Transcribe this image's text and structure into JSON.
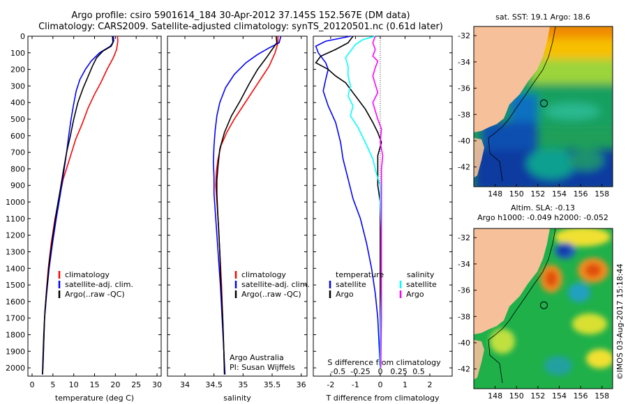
{
  "header": {
    "title_line1": "Argo profile: csiro 5901614_184 30-Apr-2012 37.145S 152.567E (DM data)",
    "title_line2": "Climatology: CARS2009. Satellite-adjusted climatology: synTS_20120501.nc (0.61d later)"
  },
  "colors": {
    "climatology": "#ff0000",
    "satellite": "#0000ff",
    "argo": "#000000",
    "sal_satellite": "#00ffff",
    "sal_argo": "#ff00ff",
    "land": "#f5c09a"
  },
  "chart_data": [
    {
      "type": "line",
      "id": "temperature",
      "xlabel": "temperature (deg C)",
      "xlim": [
        -1,
        31
      ],
      "ylim": [
        2050,
        0
      ],
      "xticks": [
        0,
        5,
        10,
        15,
        20,
        25,
        30
      ],
      "yticks": [
        0,
        100,
        200,
        300,
        400,
        500,
        600,
        700,
        800,
        900,
        1000,
        1100,
        1200,
        1300,
        1400,
        1500,
        1600,
        1700,
        1800,
        1900,
        2000
      ],
      "legend": [
        "climatology",
        "satellite-adj. clim.",
        "Argo(..raw -QC)"
      ],
      "series": [
        {
          "name": "climatology",
          "color": "#ff0000",
          "points": [
            [
              20.5,
              0
            ],
            [
              20.6,
              30
            ],
            [
              20.3,
              80
            ],
            [
              19.5,
              130
            ],
            [
              18.0,
              200
            ],
            [
              16.5,
              280
            ],
            [
              15.0,
              350
            ],
            [
              13.5,
              430
            ],
            [
              12.0,
              530
            ],
            [
              10.5,
              620
            ],
            [
              9.0,
              740
            ],
            [
              7.5,
              860
            ],
            [
              6.5,
              980
            ],
            [
              5.5,
              1100
            ],
            [
              4.6,
              1250
            ],
            [
              3.9,
              1400
            ],
            [
              3.4,
              1550
            ],
            [
              3.0,
              1700
            ],
            [
              2.8,
              1850
            ],
            [
              2.6,
              2000
            ],
            [
              2.5,
              2040
            ]
          ]
        },
        {
          "name": "satellite-adj. clim.",
          "color": "#0000ff",
          "points": [
            [
              19.5,
              0
            ],
            [
              19.6,
              30
            ],
            [
              18.8,
              60
            ],
            [
              16.2,
              100
            ],
            [
              14.2,
              150
            ],
            [
              12.8,
              200
            ],
            [
              11.5,
              260
            ],
            [
              10.6,
              330
            ],
            [
              9.9,
              420
            ],
            [
              9.3,
              510
            ],
            [
              8.8,
              600
            ],
            [
              8.3,
              700
            ],
            [
              7.6,
              820
            ],
            [
              6.8,
              950
            ],
            [
              5.8,
              1100
            ],
            [
              4.9,
              1250
            ],
            [
              4.1,
              1400
            ],
            [
              3.5,
              1550
            ],
            [
              3.0,
              1700
            ],
            [
              2.8,
              1850
            ],
            [
              2.6,
              2000
            ],
            [
              2.5,
              2040
            ]
          ]
        },
        {
          "name": "Argo(..raw -QC)",
          "color": "#000000",
          "points": [
            [
              19.3,
              0
            ],
            [
              19.4,
              40
            ],
            [
              19.0,
              60
            ],
            [
              17.0,
              90
            ],
            [
              15.5,
              130
            ],
            [
              14.5,
              180
            ],
            [
              13.5,
              240
            ],
            [
              12.3,
              310
            ],
            [
              11.0,
              400
            ],
            [
              10.0,
              500
            ],
            [
              9.2,
              600
            ],
            [
              8.3,
              700
            ],
            [
              7.6,
              800
            ],
            [
              6.8,
              920
            ],
            [
              5.9,
              1050
            ],
            [
              5.0,
              1200
            ],
            [
              4.2,
              1350
            ],
            [
              3.6,
              1500
            ],
            [
              3.1,
              1650
            ],
            [
              2.8,
              1800
            ],
            [
              2.6,
              1950
            ],
            [
              2.5,
              2040
            ]
          ]
        }
      ]
    },
    {
      "type": "line",
      "id": "salinity",
      "xlabel": "salinity",
      "xlim": [
        33.7,
        36.1
      ],
      "ylim": [
        2050,
        0
      ],
      "xticks": [
        34,
        34.5,
        35,
        35.5,
        36
      ],
      "legend": [
        "climatology",
        "satellite-adj. clim.",
        "Argo(..raw -QC)"
      ],
      "annotation": [
        "Argo Australia",
        "PI: Susan Wijffels"
      ],
      "series": [
        {
          "name": "climatology",
          "color": "#ff0000",
          "points": [
            [
              35.6,
              0
            ],
            [
              35.6,
              40
            ],
            [
              35.55,
              100
            ],
            [
              35.45,
              180
            ],
            [
              35.3,
              260
            ],
            [
              35.15,
              340
            ],
            [
              35.0,
              420
            ],
            [
              34.85,
              500
            ],
            [
              34.72,
              580
            ],
            [
              34.62,
              660
            ],
            [
              34.57,
              740
            ],
            [
              34.54,
              820
            ],
            [
              34.53,
              900
            ],
            [
              34.55,
              1000
            ],
            [
              34.58,
              1150
            ],
            [
              34.6,
              1300
            ],
            [
              34.63,
              1500
            ],
            [
              34.65,
              1700
            ],
            [
              34.67,
              1900
            ],
            [
              34.68,
              2040
            ]
          ]
        },
        {
          "name": "satellite-adj. clim.",
          "color": "#0000ff",
          "points": [
            [
              35.65,
              0
            ],
            [
              35.62,
              40
            ],
            [
              35.45,
              70
            ],
            [
              35.25,
              110
            ],
            [
              35.05,
              160
            ],
            [
              34.85,
              230
            ],
            [
              34.7,
              310
            ],
            [
              34.6,
              400
            ],
            [
              34.55,
              480
            ],
            [
              34.52,
              570
            ],
            [
              34.5,
              660
            ],
            [
              34.49,
              760
            ],
            [
              34.5,
              850
            ],
            [
              34.5,
              950
            ],
            [
              34.53,
              1100
            ],
            [
              34.57,
              1300
            ],
            [
              34.61,
              1500
            ],
            [
              34.64,
              1700
            ],
            [
              34.67,
              1900
            ],
            [
              34.69,
              2040
            ]
          ]
        },
        {
          "name": "Argo(..raw -QC)",
          "color": "#000000",
          "points": [
            [
              35.57,
              0
            ],
            [
              35.58,
              40
            ],
            [
              35.5,
              80
            ],
            [
              35.4,
              130
            ],
            [
              35.25,
              200
            ],
            [
              35.1,
              290
            ],
            [
              34.95,
              390
            ],
            [
              34.8,
              480
            ],
            [
              34.68,
              580
            ],
            [
              34.6,
              680
            ],
            [
              34.57,
              780
            ],
            [
              34.55,
              870
            ],
            [
              34.55,
              950
            ],
            [
              34.57,
              1100
            ],
            [
              34.6,
              1300
            ],
            [
              34.62,
              1500
            ],
            [
              34.65,
              1700
            ],
            [
              34.67,
              1900
            ],
            [
              34.68,
              2040
            ]
          ]
        }
      ]
    },
    {
      "type": "line",
      "id": "difference",
      "xlabel": "T difference from climatology",
      "xlabel_top": "S difference from climatology",
      "xlim": [
        -2.7,
        2.9
      ],
      "ylim": [
        2050,
        0
      ],
      "xticks": [
        -2,
        -1,
        0,
        1,
        2
      ],
      "xticks_s": [
        {
          "pos": -1.7,
          "label": "-0.5"
        },
        {
          "pos": -0.8,
          "label": "-0.25"
        },
        {
          "pos": 0,
          "label": "0"
        },
        {
          "pos": 0.75,
          "label": "0.25"
        },
        {
          "pos": 1.55,
          "label": "0.5"
        }
      ],
      "legend_t_title": "temperature",
      "legend_s_title": "salinity",
      "legend_t": [
        "satellite",
        "Argo"
      ],
      "legend_s": [
        "satellite",
        "Argo"
      ],
      "series": [
        {
          "name": "T satellite",
          "color": "#0000ff",
          "points": [
            [
              -1.2,
              0
            ],
            [
              -2.2,
              30
            ],
            [
              -2.6,
              60
            ],
            [
              -2.5,
              100
            ],
            [
              -2.2,
              160
            ],
            [
              -2.1,
              200
            ],
            [
              -2.2,
              260
            ],
            [
              -2.3,
              330
            ],
            [
              -2.1,
              420
            ],
            [
              -1.8,
              520
            ],
            [
              -1.6,
              640
            ],
            [
              -1.5,
              740
            ],
            [
              -1.3,
              860
            ],
            [
              -1.1,
              980
            ],
            [
              -0.8,
              1100
            ],
            [
              -0.55,
              1250
            ],
            [
              -0.35,
              1400
            ],
            [
              -0.2,
              1550
            ],
            [
              -0.1,
              1700
            ],
            [
              -0.05,
              1850
            ],
            [
              0,
              2000
            ]
          ]
        },
        {
          "name": "T Argo",
          "color": "#000000",
          "points": [
            [
              -1.1,
              0
            ],
            [
              -1.3,
              40
            ],
            [
              -1.8,
              80
            ],
            [
              -2.4,
              120
            ],
            [
              -2.6,
              160
            ],
            [
              -2.1,
              200
            ],
            [
              -1.8,
              240
            ],
            [
              -1.4,
              280
            ],
            [
              -1.2,
              320
            ],
            [
              -0.9,
              380
            ],
            [
              -0.6,
              440
            ],
            [
              -0.3,
              520
            ],
            [
              -0.1,
              580
            ],
            [
              0.05,
              640
            ],
            [
              -0.1,
              720
            ],
            [
              -0.1,
              820
            ],
            [
              -0.1,
              900
            ],
            [
              0,
              1000
            ],
            [
              0,
              1200
            ],
            [
              0,
              1500
            ],
            [
              0,
              1800
            ],
            [
              0,
              2000
            ]
          ]
        },
        {
          "name": "S satellite",
          "color": "#00ffff",
          "points": [
            [
              -0.2,
              0
            ],
            [
              -0.7,
              20
            ],
            [
              -1.0,
              50
            ],
            [
              -1.2,
              90
            ],
            [
              -1.4,
              130
            ],
            [
              -1.3,
              180
            ],
            [
              -1.3,
              240
            ],
            [
              -1.2,
              300
            ],
            [
              -1.3,
              360
            ],
            [
              -1.1,
              420
            ],
            [
              -1.2,
              480
            ],
            [
              -0.9,
              550
            ],
            [
              -0.6,
              640
            ],
            [
              -0.3,
              740
            ],
            [
              -0.15,
              830
            ],
            [
              0,
              900
            ],
            [
              0,
              1000
            ],
            [
              0.05,
              1200
            ],
            [
              0.05,
              1500
            ],
            [
              0,
              1800
            ],
            [
              0,
              2000
            ]
          ]
        },
        {
          "name": "S Argo",
          "color": "#ff00ff",
          "points": [
            [
              -0.2,
              0
            ],
            [
              -0.3,
              40
            ],
            [
              -0.2,
              80
            ],
            [
              -0.3,
              120
            ],
            [
              -0.1,
              150
            ],
            [
              -0.2,
              190
            ],
            [
              -0.3,
              240
            ],
            [
              -0.2,
              290
            ],
            [
              -0.1,
              340
            ],
            [
              -0.3,
              400
            ],
            [
              -0.2,
              450
            ],
            [
              -0.1,
              500
            ],
            [
              0.05,
              560
            ],
            [
              0,
              640
            ],
            [
              0.1,
              720
            ],
            [
              0.05,
              800
            ],
            [
              0.05,
              900
            ],
            [
              0.05,
              1100
            ],
            [
              0.05,
              1400
            ],
            [
              0.05,
              1700
            ],
            [
              0.02,
              2000
            ]
          ]
        }
      ]
    },
    {
      "type": "heatmap",
      "id": "sst-map",
      "title": "sat. SST: 19.1  Argo: 18.6",
      "xlim": [
        146,
        159
      ],
      "ylim": [
        -43.5,
        -31.3
      ],
      "xticks": [
        148,
        150,
        152,
        154,
        156,
        158
      ],
      "yticks": [
        -32,
        -34,
        -36,
        -38,
        -40,
        -42
      ],
      "marker": {
        "lon": 152.567,
        "lat": -37.145
      }
    },
    {
      "type": "heatmap",
      "id": "sla-map",
      "title_line1": "Altim. SLA: -0.13",
      "title_line2": "Argo h1000: -0.049 h2000: -0.052",
      "xlim": [
        146,
        159
      ],
      "ylim": [
        -43.5,
        -31.3
      ],
      "xticks": [
        148,
        150,
        152,
        154,
        156,
        158
      ],
      "yticks": [
        -32,
        -34,
        -36,
        -38,
        -40,
        -42
      ],
      "marker": {
        "lon": 152.567,
        "lat": -37.145
      }
    }
  ],
  "footer": {
    "credit": "©IMOS 03-Aug-2017 15:18:44"
  }
}
